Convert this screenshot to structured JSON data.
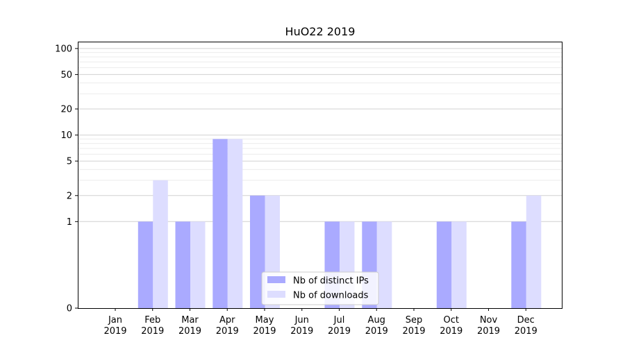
{
  "chart_data": {
    "type": "bar",
    "title": "HuO22 2019",
    "xlabel": "",
    "ylabel": "",
    "yscale": "symlog",
    "ylim": [
      0,
      120
    ],
    "yticks": [
      0,
      1,
      2,
      5,
      10,
      20,
      50,
      100
    ],
    "categories": [
      {
        "month": "Jan",
        "year": "2019"
      },
      {
        "month": "Feb",
        "year": "2019"
      },
      {
        "month": "Mar",
        "year": "2019"
      },
      {
        "month": "Apr",
        "year": "2019"
      },
      {
        "month": "May",
        "year": "2019"
      },
      {
        "month": "Jun",
        "year": "2019"
      },
      {
        "month": "Jul",
        "year": "2019"
      },
      {
        "month": "Aug",
        "year": "2019"
      },
      {
        "month": "Sep",
        "year": "2019"
      },
      {
        "month": "Oct",
        "year": "2019"
      },
      {
        "month": "Nov",
        "year": "2019"
      },
      {
        "month": "Dec",
        "year": "2019"
      }
    ],
    "series": [
      {
        "name": "Nb of distinct IPs",
        "color": "#aaaaff",
        "values": [
          0,
          1,
          1,
          9,
          2,
          0,
          1,
          1,
          0,
          1,
          0,
          1
        ]
      },
      {
        "name": "Nb of downloads",
        "color": "#ddddff",
        "values": [
          0,
          3,
          1,
          9,
          2,
          0,
          1,
          1,
          0,
          1,
          0,
          2
        ]
      }
    ],
    "grid": true,
    "legend_position": "lower-center"
  }
}
